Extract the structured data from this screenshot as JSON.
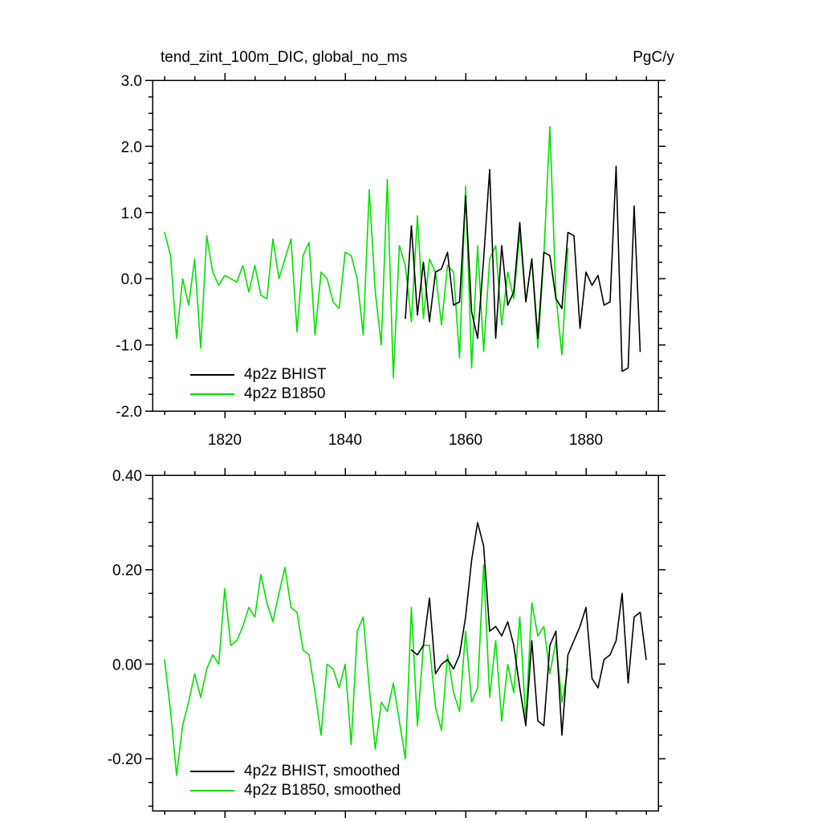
{
  "chart_data": [
    {
      "type": "line",
      "title": "tend_zint_100m_DIC, global_no_ms",
      "units": "PgC/y",
      "xlim": [
        1808,
        1892
      ],
      "ylim": [
        -2.0,
        3.0
      ],
      "xticks": [
        1820,
        1840,
        1860,
        1880
      ],
      "xtick_labels": [
        "1820",
        "1840",
        "1860",
        "1880"
      ],
      "yticks": [
        3.0,
        2.0,
        1.0,
        0.0,
        -1.0,
        -2.0
      ],
      "ytick_labels": [
        "3.0",
        "2.0",
        "1.0",
        "0.0",
        "-1.0",
        "-2.0"
      ],
      "x_minor_step": 5,
      "y_minor_step": 0.25,
      "grid": false,
      "legend": {
        "position": "inside-bottom-left",
        "entries": [
          {
            "label": "4p2z BHIST",
            "color": "#000000"
          },
          {
            "label": "4p2z B1850",
            "color": "#00e000"
          }
        ]
      },
      "series": [
        {
          "id": "bhist",
          "name": "4p2z BHIST",
          "color": "#000000",
          "x_start": 1850,
          "x_step": 1,
          "values": [
            -0.6,
            0.8,
            -0.55,
            0.25,
            -0.65,
            0.1,
            0.15,
            0.4,
            -0.4,
            -0.35,
            1.25,
            -0.5,
            -0.9,
            0.3,
            1.65,
            -0.9,
            0.5,
            -0.4,
            -0.2,
            0.85,
            -0.35,
            0.3,
            -0.9,
            0.4,
            0.35,
            -0.3,
            -0.45,
            0.7,
            0.65,
            -0.75,
            0.1,
            -0.1,
            0.05,
            -0.4,
            -0.35,
            1.7,
            -1.4,
            -1.35,
            1.1,
            -1.1
          ]
        },
        {
          "id": "b1850",
          "name": "4p2z B1850",
          "color": "#00e000",
          "x_start": 1810,
          "x_step": 1,
          "values": [
            0.7,
            0.35,
            -0.9,
            0.0,
            -0.4,
            0.3,
            -1.05,
            0.65,
            0.1,
            -0.1,
            0.05,
            0.0,
            -0.05,
            0.2,
            -0.2,
            0.2,
            -0.25,
            -0.3,
            0.6,
            0.0,
            0.3,
            0.6,
            -0.8,
            0.35,
            0.55,
            -0.85,
            0.1,
            0.0,
            -0.35,
            -0.45,
            0.4,
            0.35,
            0.0,
            -0.85,
            1.35,
            -0.2,
            -1.0,
            1.5,
            -1.5,
            0.5,
            0.2,
            -0.65,
            0.95,
            -0.6,
            0.3,
            0.1,
            -0.7,
            0.2,
            0.1,
            -1.2,
            1.4,
            -1.35,
            0.5,
            -1.1,
            0.3,
            0.5,
            -0.7,
            0.1,
            -0.3,
            0.7,
            -0.35,
            0.3,
            -1.05,
            0.35,
            2.3,
            -0.25,
            -1.15,
            0.45
          ]
        }
      ]
    },
    {
      "type": "line",
      "title": "",
      "units": "",
      "xlim": [
        1808,
        1892
      ],
      "ylim": [
        -0.31,
        0.4
      ],
      "xticks": [
        1820,
        1840,
        1860,
        1880
      ],
      "xtick_labels": [],
      "yticks": [
        0.4,
        0.2,
        0.0,
        -0.2
      ],
      "ytick_labels": [
        "0.40",
        "0.20",
        "0.00",
        "-0.20"
      ],
      "x_minor_step": 5,
      "y_minor_step": 0.05,
      "grid": false,
      "legend": {
        "position": "inside-bottom-left",
        "entries": [
          {
            "label": "4p2z BHIST, smoothed",
            "color": "#000000"
          },
          {
            "label": "4p2z B1850, smoothed",
            "color": "#00e000"
          }
        ]
      },
      "series": [
        {
          "id": "bhist_smoothed",
          "name": "4p2z BHIST, smoothed",
          "color": "#000000",
          "x_start": 1851,
          "x_step": 1,
          "values": [
            0.03,
            0.02,
            0.04,
            0.14,
            -0.02,
            0.0,
            0.01,
            -0.01,
            0.02,
            0.1,
            0.22,
            0.3,
            0.25,
            0.07,
            0.08,
            0.06,
            0.09,
            0.04,
            -0.05,
            -0.13,
            0.05,
            -0.12,
            -0.13,
            0.04,
            0.07,
            -0.15,
            0.02,
            0.05,
            0.08,
            0.12,
            -0.03,
            -0.05,
            0.01,
            0.02,
            0.05,
            0.15,
            -0.04,
            0.1,
            0.11,
            0.01
          ]
        },
        {
          "id": "b1850_smoothed",
          "name": "4p2z B1850, smoothed",
          "color": "#00e000",
          "x_start": 1810,
          "x_step": 1,
          "values": [
            0.01,
            -0.1,
            -0.235,
            -0.13,
            -0.08,
            -0.02,
            -0.07,
            -0.01,
            0.02,
            0.0,
            0.16,
            0.04,
            0.05,
            0.08,
            0.12,
            0.1,
            0.19,
            0.13,
            0.09,
            0.15,
            0.205,
            0.12,
            0.11,
            0.03,
            0.02,
            -0.06,
            -0.15,
            0.0,
            -0.01,
            -0.05,
            0.0,
            -0.17,
            0.07,
            0.1,
            -0.05,
            -0.18,
            -0.08,
            -0.1,
            -0.04,
            -0.12,
            -0.2,
            0.12,
            -0.13,
            0.04,
            0.04,
            -0.09,
            -0.14,
            0.02,
            -0.06,
            -0.1,
            0.07,
            -0.08,
            -0.05,
            0.21,
            -0.07,
            0.05,
            -0.12,
            0.0,
            -0.06,
            0.1,
            -0.12,
            0.13,
            0.06,
            0.08,
            -0.02,
            0.05,
            -0.08,
            -0.01
          ]
        }
      ]
    }
  ]
}
